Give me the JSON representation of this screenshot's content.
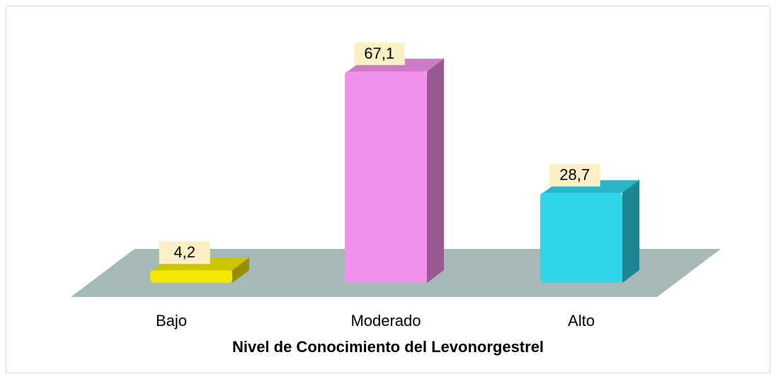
{
  "chart_data": {
    "type": "bar3d",
    "title": "Nivel de Conocimiento del Levonorgestrel",
    "categories": [
      "Bajo",
      "Moderado",
      "Alto"
    ],
    "values": [
      4.2,
      67.1,
      28.7
    ],
    "value_labels": [
      "4,2",
      "67,1",
      "28,7"
    ],
    "colors": [
      "#f2e800",
      "#f291ea",
      "#2fd6ea"
    ]
  }
}
